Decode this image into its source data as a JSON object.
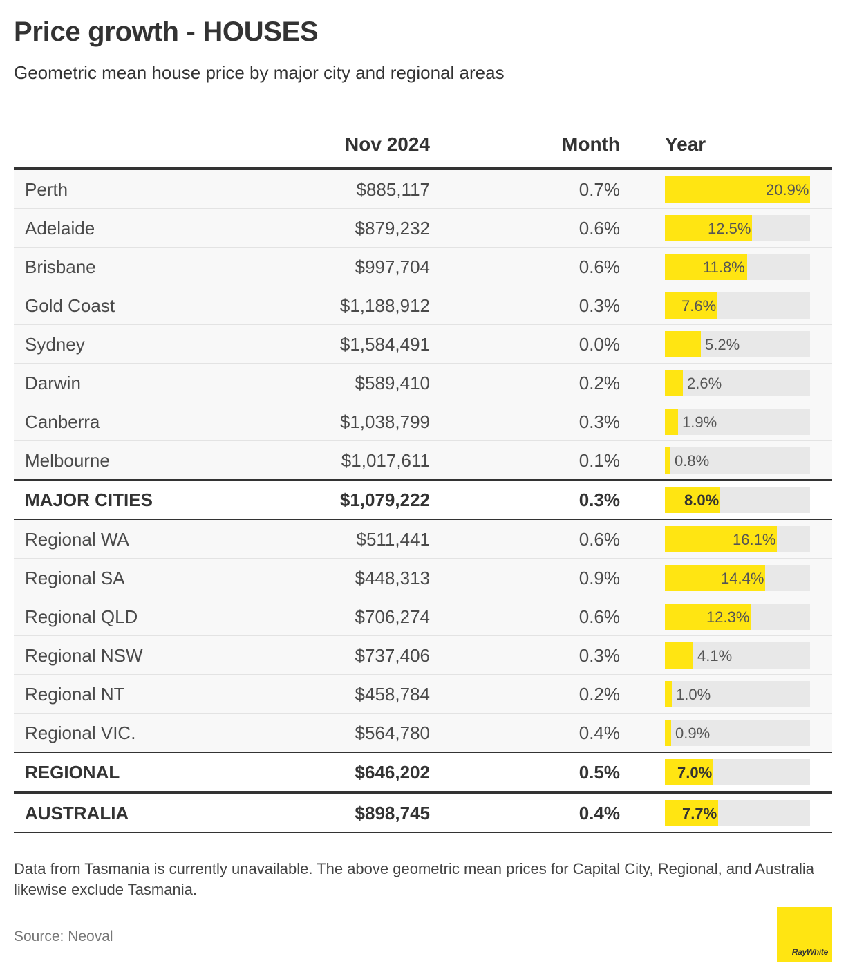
{
  "header": {
    "title": "Price growth - HOUSES",
    "subtitle": "Geometric mean house price by major city and regional areas"
  },
  "columns": {
    "price": "Nov 2024",
    "month": "Month",
    "year": "Year"
  },
  "chart_data": {
    "type": "table",
    "bar_max": 20.9,
    "rows": [
      {
        "name": "Perth",
        "price": "$885,117",
        "month": "0.7%",
        "year": 20.9,
        "year_label": "20.9%",
        "bold": false,
        "style": ""
      },
      {
        "name": "Adelaide",
        "price": "$879,232",
        "month": "0.6%",
        "year": 12.5,
        "year_label": "12.5%",
        "bold": false,
        "style": ""
      },
      {
        "name": "Brisbane",
        "price": "$997,704",
        "month": "0.6%",
        "year": 11.8,
        "year_label": "11.8%",
        "bold": false,
        "style": ""
      },
      {
        "name": "Gold Coast",
        "price": "$1,188,912",
        "month": "0.3%",
        "year": 7.6,
        "year_label": "7.6%",
        "bold": false,
        "style": ""
      },
      {
        "name": "Sydney",
        "price": "$1,584,491",
        "month": "0.0%",
        "year": 5.2,
        "year_label": "5.2%",
        "bold": false,
        "style": ""
      },
      {
        "name": "Darwin",
        "price": "$589,410",
        "month": "0.2%",
        "year": 2.6,
        "year_label": "2.6%",
        "bold": false,
        "style": ""
      },
      {
        "name": "Canberra",
        "price": "$1,038,799",
        "month": "0.3%",
        "year": 1.9,
        "year_label": "1.9%",
        "bold": false,
        "style": ""
      },
      {
        "name": "Melbourne",
        "price": "$1,017,611",
        "month": "0.1%",
        "year": 0.8,
        "year_label": "0.8%",
        "bold": false,
        "style": "first-group-end"
      },
      {
        "name": "MAJOR CITIES",
        "price": "$1,079,222",
        "month": "0.3%",
        "year": 8.0,
        "year_label": "8.0%",
        "bold": true,
        "style": ""
      },
      {
        "name": "Regional WA",
        "price": "$511,441",
        "month": "0.6%",
        "year": 16.1,
        "year_label": "16.1%",
        "bold": false,
        "style": ""
      },
      {
        "name": "Regional SA",
        "price": "$448,313",
        "month": "0.9%",
        "year": 14.4,
        "year_label": "14.4%",
        "bold": false,
        "style": ""
      },
      {
        "name": "Regional QLD",
        "price": "$706,274",
        "month": "0.6%",
        "year": 12.3,
        "year_label": "12.3%",
        "bold": false,
        "style": ""
      },
      {
        "name": "Regional NSW",
        "price": "$737,406",
        "month": "0.3%",
        "year": 4.1,
        "year_label": "4.1%",
        "bold": false,
        "style": ""
      },
      {
        "name": "Regional NT",
        "price": "$458,784",
        "month": "0.2%",
        "year": 1.0,
        "year_label": "1.0%",
        "bold": false,
        "style": ""
      },
      {
        "name": "Regional VIC.",
        "price": "$564,780",
        "month": "0.4%",
        "year": 0.9,
        "year_label": "0.9%",
        "bold": false,
        "style": "first-group-end"
      },
      {
        "name": "REGIONAL",
        "price": "$646,202",
        "month": "0.5%",
        "year": 7.0,
        "year_label": "7.0%",
        "bold": true,
        "style": "regional-total"
      },
      {
        "name": "AUSTRALIA",
        "price": "$898,745",
        "month": "0.4%",
        "year": 7.7,
        "year_label": "7.7%",
        "bold": true,
        "style": "australia"
      }
    ]
  },
  "footnote": "Data from Tasmania is currently unavailable. The above geometric mean prices for Capital City, Regional, and Australia likewise exclude Tasmania.",
  "source": "Source: Neoval",
  "logo": {
    "text": "RayWhite"
  },
  "colors": {
    "bar": "#ffe512",
    "track": "#e8e8e8",
    "text": "#333333"
  }
}
